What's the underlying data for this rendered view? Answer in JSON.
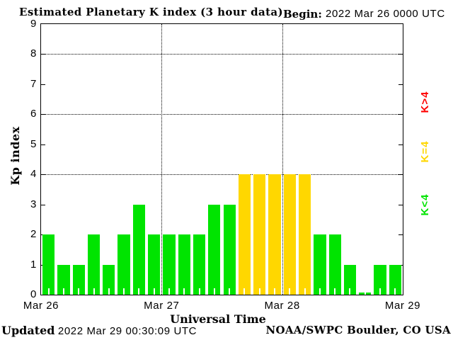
{
  "header": {
    "title": "Estimated Planetary K index (3 hour data)",
    "begin_label": "Begin:",
    "begin_value": "2022 Mar 26 0000 UTC"
  },
  "chart_data": {
    "type": "bar",
    "title": "Estimated Planetary K index (3 hour data)",
    "begin": "2022 Mar 26 0000 UTC",
    "xlabel": "Universal Time",
    "ylabel": "Kp index",
    "ylim": [
      0,
      9
    ],
    "yticks": [
      0,
      1,
      2,
      3,
      4,
      5,
      6,
      7,
      8,
      9
    ],
    "grid_y_dotted": [
      4,
      6,
      8
    ],
    "x_day_labels": [
      "Mar 26",
      "Mar 27",
      "Mar 28",
      "Mar 29"
    ],
    "x_day_divider_dotted": true,
    "hours_per_bar": 3,
    "values": [
      2,
      1,
      1,
      2,
      1,
      2,
      3,
      2,
      2,
      2,
      2,
      3,
      3,
      4,
      4,
      4,
      4,
      4,
      2,
      2,
      1,
      0,
      1,
      1
    ],
    "bar_colors": {
      "below_4": "#00e400",
      "equal_4": "#ffd700",
      "above_4": "#ff0000"
    },
    "grid": true,
    "legend_position": "right-rotated"
  },
  "legend": {
    "items": [
      {
        "label": "K>4",
        "color": "#ff0000"
      },
      {
        "label": "K=4",
        "color": "#ffd700"
      },
      {
        "label": "K<4",
        "color": "#00e400"
      }
    ]
  },
  "footer": {
    "updated_label": "Updated",
    "updated_value": "2022 Mar 29 00:30:09 UTC",
    "credit": "NOAA/SWPC Boulder, CO USA"
  }
}
